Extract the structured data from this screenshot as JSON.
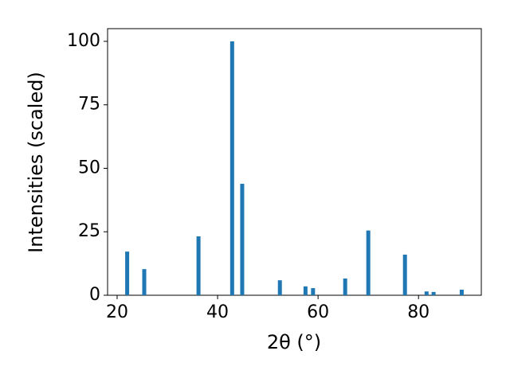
{
  "chart_data": {
    "type": "bar",
    "xlabel": "2θ (°)",
    "ylabel": "Intensities (scaled)",
    "x": [
      22.0,
      25.4,
      36.2,
      42.9,
      44.9,
      52.4,
      57.5,
      59.0,
      65.4,
      70.0,
      77.3,
      81.6,
      83.0,
      88.6
    ],
    "values": [
      17.2,
      10.3,
      23.2,
      100,
      43.9,
      5.9,
      3.5,
      2.8,
      6.6,
      25.5,
      16,
      1.5,
      1.3,
      2.2
    ],
    "color": "#1f77b4",
    "xlim": [
      18.1,
      92.5
    ],
    "xticks": [
      20,
      40,
      60,
      80
    ],
    "ylim": [
      0,
      105
    ],
    "yticks": [
      0,
      25,
      50,
      75,
      100
    ],
    "grid": false
  }
}
